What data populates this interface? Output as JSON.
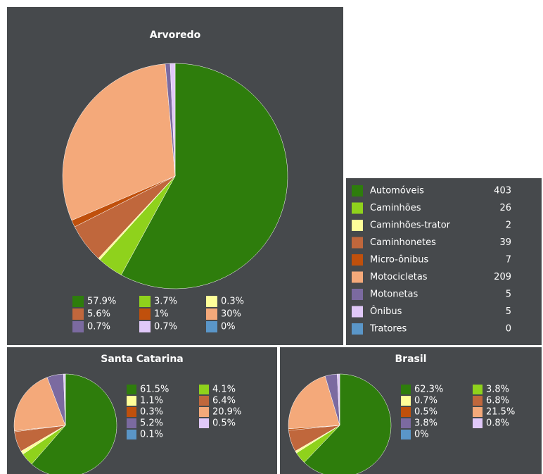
{
  "chart_data": [
    {
      "type": "pie",
      "title": "Arvoredo",
      "values": [
        57.9,
        3.7,
        0.3,
        5.6,
        1,
        30,
        0.7,
        0.7,
        0
      ],
      "value_labels": [
        "57.9%",
        "3.7%",
        "0.3%",
        "5.6%",
        "1%",
        "30%",
        "0.7%",
        "0.7%",
        "0%"
      ],
      "colors": [
        "#2e7d0c",
        "#8fd21c",
        "#ffff99",
        "#c0673c",
        "#c0500c",
        "#f4a97a",
        "#7b6aa0",
        "#e0c8f8",
        "#5a96c8"
      ]
    },
    {
      "type": "pie",
      "title": "Santa Catarina",
      "values": [
        61.5,
        4.1,
        1.1,
        6.4,
        0.3,
        20.9,
        5.2,
        0.5,
        0.1
      ],
      "value_labels": [
        "61.5%",
        "4.1%",
        "1.1%",
        "6.4%",
        "0.3%",
        "20.9%",
        "5.2%",
        "0.5%",
        "0.1%"
      ],
      "colors": [
        "#2e7d0c",
        "#8fd21c",
        "#ffff99",
        "#c0673c",
        "#c0500c",
        "#f4a97a",
        "#7b6aa0",
        "#e0c8f8",
        "#5a96c8"
      ]
    },
    {
      "type": "pie",
      "title": "Brasil",
      "values": [
        62.3,
        3.8,
        0.7,
        6.8,
        0.5,
        21.5,
        3.8,
        0.8,
        0
      ],
      "value_labels": [
        "62.3%",
        "3.8%",
        "0.7%",
        "6.8%",
        "0.5%",
        "21.5%",
        "3.8%",
        "0.8%",
        "0%"
      ],
      "colors": [
        "#2e7d0c",
        "#8fd21c",
        "#ffff99",
        "#c0673c",
        "#c0500c",
        "#f4a97a",
        "#7b6aa0",
        "#e0c8f8",
        "#5a96c8"
      ]
    }
  ],
  "table": {
    "rows": [
      {
        "name": "Automóveis",
        "count": 403
      },
      {
        "name": "Caminhões",
        "count": 26
      },
      {
        "name": "Caminhões-trator",
        "count": 2
      },
      {
        "name": "Caminhonetes",
        "count": 39
      },
      {
        "name": "Micro-ônibus",
        "count": 7
      },
      {
        "name": "Motocicletas",
        "count": 209
      },
      {
        "name": "Motonetas",
        "count": 5
      },
      {
        "name": "Ônibus",
        "count": 5
      },
      {
        "name": "Tratores",
        "count": 0
      }
    ]
  }
}
